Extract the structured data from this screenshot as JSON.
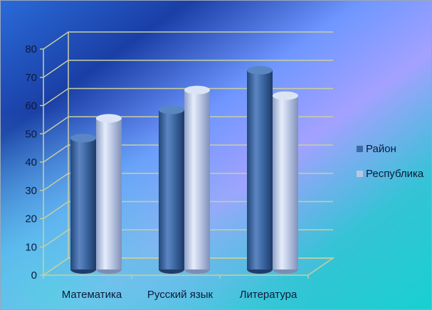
{
  "chart_data": {
    "type": "bar",
    "categories": [
      "Математика",
      "Русский язык",
      "Литература"
    ],
    "series": [
      {
        "name": "Район",
        "values": [
          47.5,
          57.5,
          71.5
        ],
        "color": "#3c6aa3"
      },
      {
        "name": "Республика",
        "values": [
          54.5,
          64.5,
          62.5
        ],
        "color": "#b8c6e4"
      }
    ],
    "ylim": [
      0,
      80
    ],
    "yticks": [
      0,
      10,
      20,
      30,
      40,
      50,
      60,
      70,
      80
    ],
    "grid": true,
    "legend_position": "right",
    "style": "3d-cylinder"
  }
}
